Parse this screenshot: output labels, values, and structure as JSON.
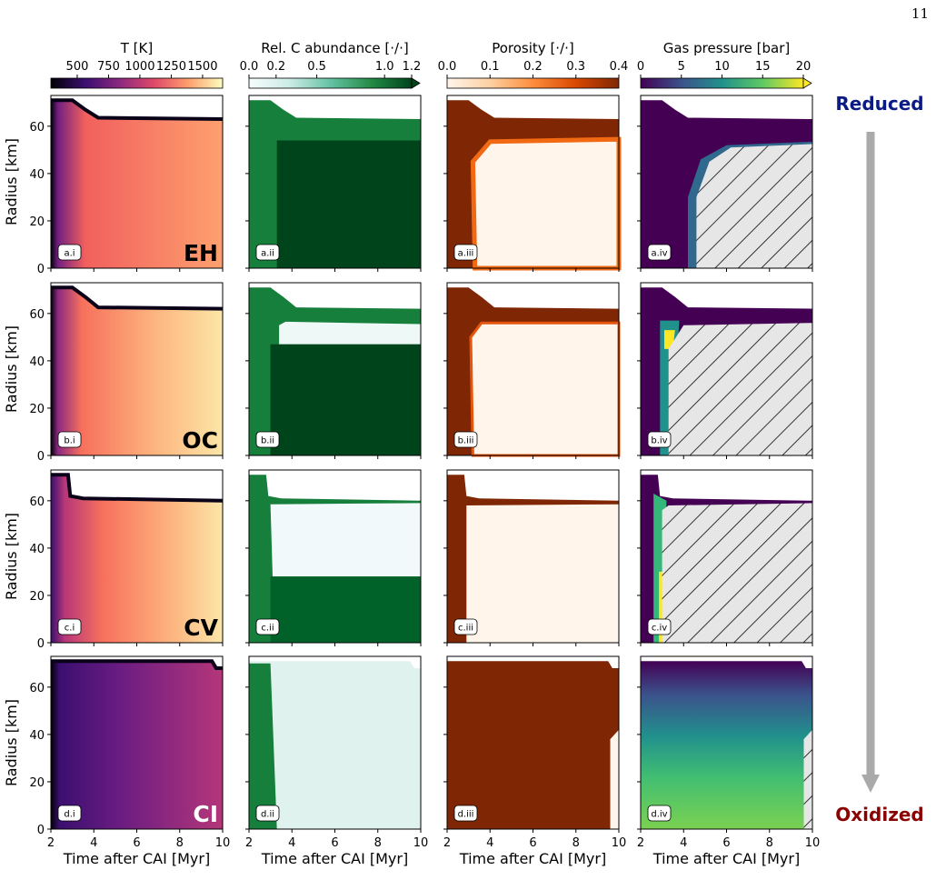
{
  "page_number": "11",
  "chart_data": {
    "type": "contour-grid",
    "x_label": "Time after CAI [Myr]",
    "y_label": "Radius [km]",
    "xlim": [
      2,
      10
    ],
    "xticks": [
      2,
      4,
      6,
      8,
      10
    ],
    "ylim": [
      0,
      73
    ],
    "yticks": [
      0,
      20,
      40,
      60
    ],
    "rows": [
      {
        "name": "EH",
        "panels": [
          "a.i",
          "a.ii",
          "a.iii",
          "a.iv"
        ]
      },
      {
        "name": "OC",
        "panels": [
          "b.i",
          "b.ii",
          "b.iii",
          "b.iv"
        ]
      },
      {
        "name": "CV",
        "panels": [
          "c.i",
          "c.ii",
          "c.iii",
          "c.iv"
        ]
      },
      {
        "name": "CI",
        "panels": [
          "d.i",
          "d.ii",
          "d.iii",
          "d.iv"
        ]
      }
    ],
    "colorbars": [
      {
        "label": "T [K]",
        "lim": [
          290,
          1660
        ],
        "ticks": [
          500,
          750,
          1000,
          1250,
          1500
        ],
        "colors": [
          "#000004",
          "#3b0f70",
          "#8c2981",
          "#de4968",
          "#fe9f6d",
          "#fcfdbf"
        ],
        "extend": "none"
      },
      {
        "label": "Rel. C abundance [·/·]",
        "lim": [
          0,
          1.2
        ],
        "ticks": [
          {
            "value": 0,
            "label": "0.0"
          },
          0.2,
          0.5,
          {
            "value": 1,
            "label": "1.0"
          },
          1.2
        ],
        "colors": [
          "#f7fcfd",
          "#ccece6",
          "#66c2a4",
          "#238b45",
          "#00441b"
        ],
        "extend": "max"
      },
      {
        "label": "Porosity [·/·]",
        "lim": [
          0,
          0.4
        ],
        "ticks": [
          {
            "value": 0,
            "label": "0.0"
          },
          0.1,
          0.2,
          0.3,
          0.4
        ],
        "colors": [
          "#fff5eb",
          "#fdd0a2",
          "#fd8d3c",
          "#d94801",
          "#7f2704"
        ],
        "extend": "none"
      },
      {
        "label": "Gas pressure [bar]",
        "lim": [
          0,
          20
        ],
        "ticks": [
          0,
          5,
          10,
          15,
          20
        ],
        "colors": [
          "#440154",
          "#3b528b",
          "#21918c",
          "#5ec962",
          "#fde725"
        ],
        "extend": "max"
      }
    ],
    "trend": {
      "top": "Reduced",
      "top_color": "#0b1a84",
      "bottom": "Oxidized",
      "bottom_color": "#8b0000"
    }
  }
}
